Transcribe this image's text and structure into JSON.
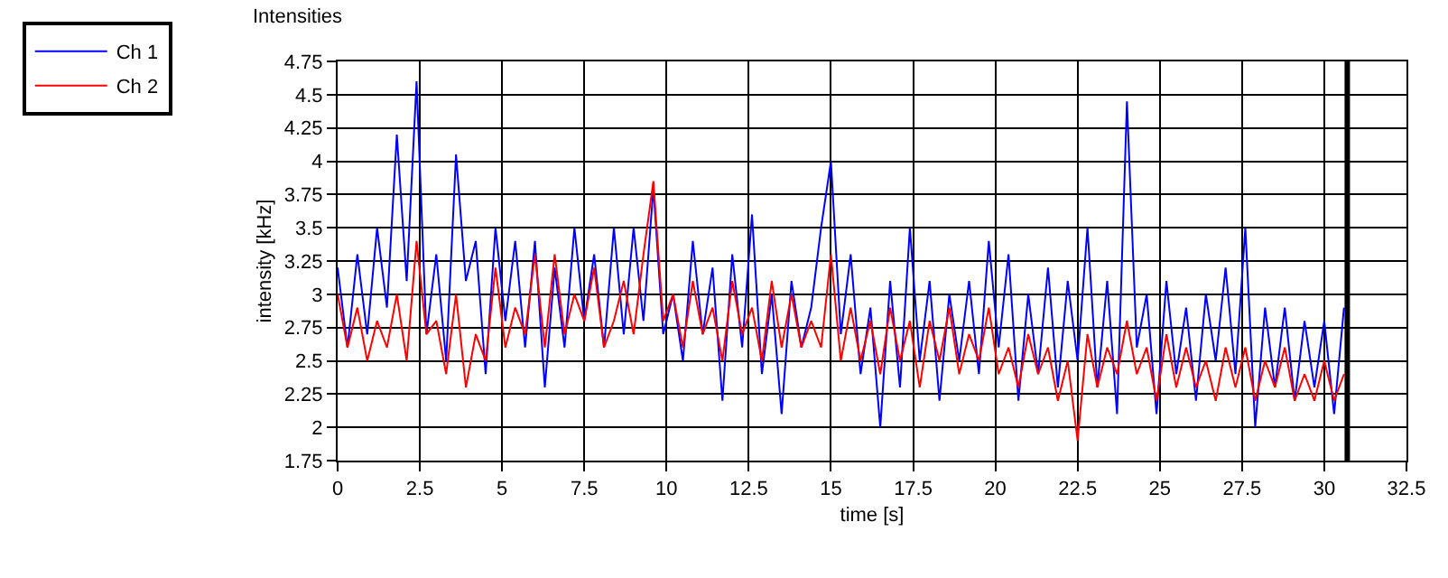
{
  "chart_data": {
    "type": "line",
    "title": "Intensities",
    "xlabel": "time [s]",
    "ylabel": "intensity [kHz]",
    "x": [
      0,
      0.3,
      0.6,
      0.9,
      1.2,
      1.5,
      1.8,
      2.1,
      2.4,
      2.7,
      3,
      3.3,
      3.6,
      3.9,
      4.2,
      4.5,
      4.8,
      5.1,
      5.4,
      5.7,
      6,
      6.3,
      6.6,
      6.9,
      7.2,
      7.5,
      7.8,
      8.1,
      8.4,
      8.7,
      9,
      9.3,
      9.6,
      9.9,
      10.2,
      10.5,
      10.8,
      11.1,
      11.4,
      11.7,
      12,
      12.3,
      12.6,
      12.9,
      13.2,
      13.5,
      13.8,
      14.1,
      14.4,
      14.7,
      15,
      15.3,
      15.6,
      15.9,
      16.2,
      16.5,
      16.8,
      17.1,
      17.4,
      17.7,
      18,
      18.3,
      18.6,
      18.9,
      19.2,
      19.5,
      19.8,
      20.1,
      20.4,
      20.7,
      21,
      21.3,
      21.6,
      21.9,
      22.2,
      22.5,
      22.8,
      23.1,
      23.4,
      23.7,
      24,
      24.3,
      24.6,
      24.9,
      25.2,
      25.5,
      25.8,
      26.1,
      26.4,
      26.7,
      27,
      27.3,
      27.6,
      27.9,
      28.2,
      28.5,
      28.8,
      29.1,
      29.4,
      29.7,
      30,
      30.3,
      30.6
    ],
    "series": [
      {
        "name": "Ch 1",
        "color": "#0000ff",
        "values": [
          3.2,
          2.6,
          3.3,
          2.7,
          3.5,
          2.9,
          4.2,
          3.1,
          4.6,
          2.7,
          3.3,
          2.5,
          4.05,
          3.1,
          3.4,
          2.4,
          3.5,
          2.8,
          3.4,
          2.6,
          3.4,
          2.3,
          3.2,
          2.6,
          3.5,
          2.8,
          3.3,
          2.6,
          3.5,
          2.7,
          3.5,
          2.8,
          3.8,
          2.7,
          3.0,
          2.5,
          3.4,
          2.7,
          3.2,
          2.2,
          3.3,
          2.6,
          3.6,
          2.4,
          3.0,
          2.1,
          3.1,
          2.6,
          2.9,
          3.5,
          4.0,
          2.7,
          3.3,
          2.4,
          2.9,
          2.0,
          3.1,
          2.3,
          3.5,
          2.5,
          3.1,
          2.2,
          3.0,
          2.5,
          3.1,
          2.4,
          3.4,
          2.6,
          3.3,
          2.2,
          3.0,
          2.4,
          3.2,
          2.3,
          3.1,
          2.5,
          3.5,
          2.3,
          3.1,
          2.1,
          4.45,
          2.6,
          3.0,
          2.1,
          3.1,
          2.4,
          2.9,
          2.2,
          3.0,
          2.5,
          3.2,
          2.4,
          3.5,
          2.0,
          2.9,
          2.3,
          2.9,
          2.2,
          2.8,
          2.3,
          2.8,
          2.1,
          2.9
        ]
      },
      {
        "name": "Ch 2",
        "color": "#ff0000",
        "values": [
          3.0,
          2.6,
          2.9,
          2.5,
          2.8,
          2.6,
          3.0,
          2.5,
          3.4,
          2.7,
          2.8,
          2.4,
          3.0,
          2.3,
          2.7,
          2.5,
          3.2,
          2.6,
          2.9,
          2.7,
          3.3,
          2.6,
          3.3,
          2.7,
          3.0,
          2.8,
          3.2,
          2.6,
          2.8,
          3.1,
          2.7,
          3.3,
          3.85,
          2.8,
          3.0,
          2.6,
          3.1,
          2.7,
          2.9,
          2.5,
          3.1,
          2.7,
          2.9,
          2.5,
          3.1,
          2.6,
          3.0,
          2.6,
          2.8,
          2.6,
          3.3,
          2.5,
          2.9,
          2.5,
          2.8,
          2.4,
          2.9,
          2.5,
          2.8,
          2.3,
          2.8,
          2.5,
          2.9,
          2.4,
          2.7,
          2.5,
          2.9,
          2.4,
          2.6,
          2.3,
          2.7,
          2.4,
          2.6,
          2.2,
          2.5,
          1.9,
          2.7,
          2.3,
          2.6,
          2.4,
          2.8,
          2.4,
          2.6,
          2.2,
          2.7,
          2.3,
          2.6,
          2.3,
          2.5,
          2.2,
          2.6,
          2.3,
          2.6,
          2.2,
          2.5,
          2.3,
          2.6,
          2.2,
          2.4,
          2.2,
          2.5,
          2.2,
          2.4
        ]
      }
    ],
    "xlim": [
      0,
      32.5
    ],
    "xticks": [
      0,
      2.5,
      5,
      7.5,
      10,
      12.5,
      15,
      17.5,
      20,
      22.5,
      25,
      27.5,
      30,
      32.5
    ],
    "ylim": [
      1.75,
      4.75
    ],
    "yticks": [
      1.75,
      2,
      2.25,
      2.5,
      2.75,
      3,
      3.25,
      3.5,
      3.75,
      4,
      4.25,
      4.5,
      4.75
    ],
    "ref_lines": [
      {
        "axis": "x",
        "value": 30.7,
        "color": "#000000"
      }
    ],
    "grid": true,
    "legend": "top left",
    "marker": "none",
    "line_style": "solid"
  }
}
